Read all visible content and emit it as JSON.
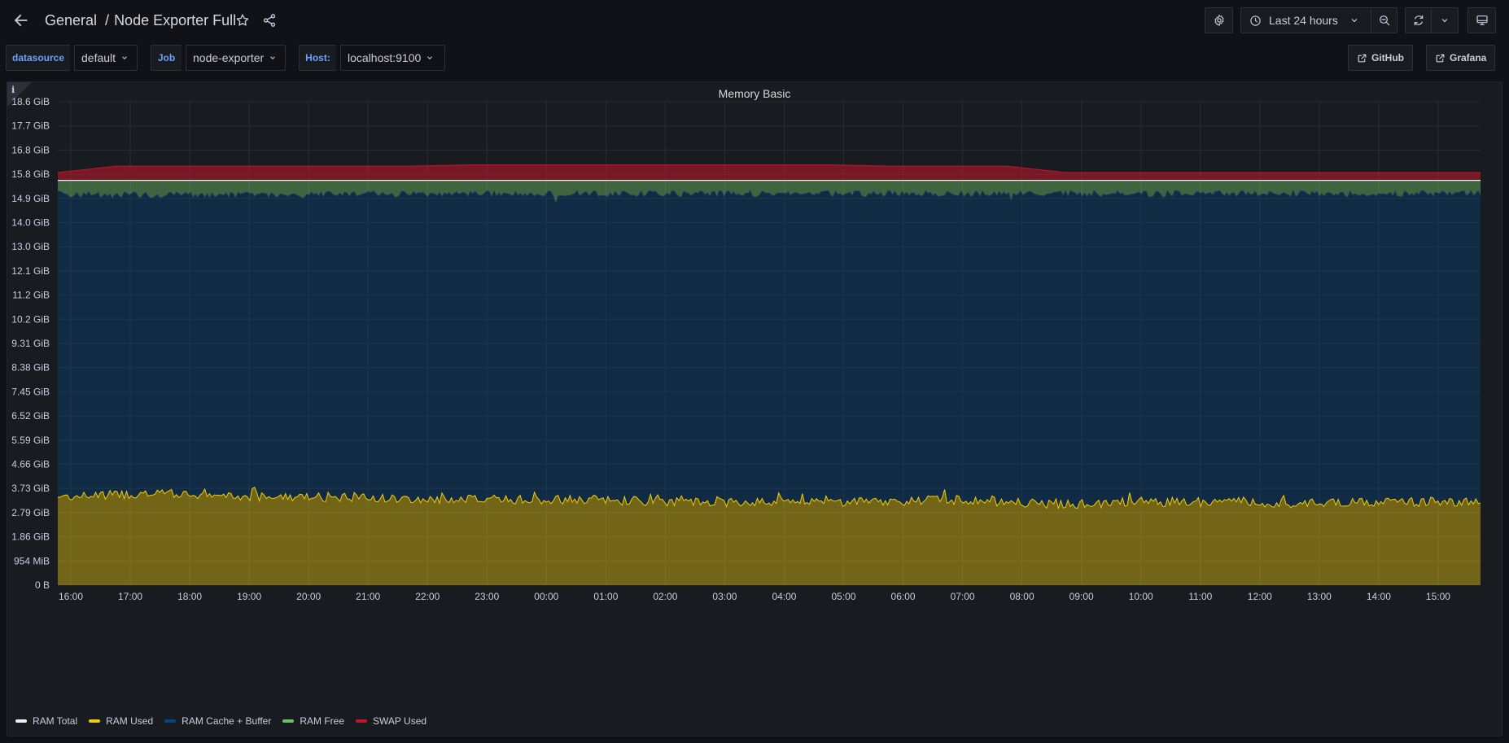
{
  "breadcrumb": {
    "folder": "General",
    "separator": "/",
    "dashboard": "Node Exporter Full"
  },
  "toolbar": {
    "time_range": "Last 24 hours"
  },
  "variables": [
    {
      "label": "datasource",
      "value": "default"
    },
    {
      "label": "Job",
      "value": "node-exporter"
    },
    {
      "label": "Host:",
      "value": "localhost:9100"
    }
  ],
  "links": {
    "github": "GitHub",
    "grafana": "Grafana"
  },
  "panel": {
    "title": "Memory Basic",
    "info": "i"
  },
  "colors": {
    "ram_total": "#f2f2f2",
    "ram_used": "#f2cc0c",
    "ram_cache_buffer": "#0a437c",
    "ram_free": "#73bf69",
    "swap_used": "#c4162a"
  },
  "chart_data": {
    "type": "area",
    "title": "Memory Basic",
    "y_tick_labels": [
      "0 B",
      "954 MiB",
      "1.86 GiB",
      "2.79 GiB",
      "3.73 GiB",
      "4.66 GiB",
      "5.59 GiB",
      "6.52 GiB",
      "7.45 GiB",
      "8.38 GiB",
      "9.31 GiB",
      "10.2 GiB",
      "11.2 GiB",
      "12.1 GiB",
      "13.0 GiB",
      "14.0 GiB",
      "14.9 GiB",
      "15.8 GiB",
      "16.8 GiB",
      "17.7 GiB",
      "18.6 GiB"
    ],
    "ylim_gib": [
      0,
      18.63
    ],
    "x_tick_labels": [
      "16:00",
      "17:00",
      "18:00",
      "19:00",
      "20:00",
      "21:00",
      "22:00",
      "23:00",
      "00:00",
      "01:00",
      "02:00",
      "03:00",
      "04:00",
      "05:00",
      "06:00",
      "07:00",
      "08:00",
      "09:00",
      "10:00",
      "11:00",
      "12:00",
      "13:00",
      "14:00",
      "15:00"
    ],
    "legend_position": "bottom-left",
    "grid": true,
    "series": [
      {
        "name": "RAM Total",
        "color": "#f2f2f2",
        "values_gib": [
          15.6,
          15.6
        ]
      },
      {
        "name": "RAM Used",
        "color": "#f2cc0c",
        "values_gib": [
          3.4,
          3.5,
          3.5,
          3.4,
          3.4,
          3.4,
          3.3,
          3.3,
          3.3,
          3.3,
          3.2,
          3.2,
          3.2,
          3.2,
          3.2,
          3.3,
          3.2,
          3.1,
          3.2,
          3.2,
          3.2,
          3.1,
          3.2,
          3.2,
          3.2
        ]
      },
      {
        "name": "RAM Cache + Buffer",
        "color": "#0a437c",
        "values_gib": [
          15.2,
          15.15,
          15.15,
          15.15,
          15.15,
          15.2,
          15.2,
          15.2,
          15.2,
          15.2,
          15.2,
          15.2,
          15.2,
          15.2,
          15.2,
          15.2,
          15.2,
          15.2,
          15.2,
          15.2,
          15.2,
          15.2,
          15.2,
          15.2,
          15.2
        ]
      },
      {
        "name": "RAM Free",
        "color": "#73bf69",
        "values_gib": [
          0.4,
          0.45,
          0.45,
          0.45,
          0.45,
          0.4,
          0.4,
          0.4,
          0.4,
          0.4,
          0.4,
          0.4,
          0.4,
          0.4,
          0.4,
          0.4,
          0.4,
          0.4,
          0.4,
          0.4,
          0.4,
          0.4,
          0.4,
          0.4,
          0.4
        ]
      },
      {
        "name": "SWAP Used",
        "color": "#c4162a",
        "values_gib": [
          0.3,
          0.55,
          0.55,
          0.55,
          0.55,
          0.55,
          0.55,
          0.6,
          0.6,
          0.6,
          0.6,
          0.6,
          0.6,
          0.6,
          0.55,
          0.55,
          0.55,
          0.3,
          0.3,
          0.3,
          0.3,
          0.3,
          0.3,
          0.3,
          0.3
        ]
      }
    ]
  }
}
